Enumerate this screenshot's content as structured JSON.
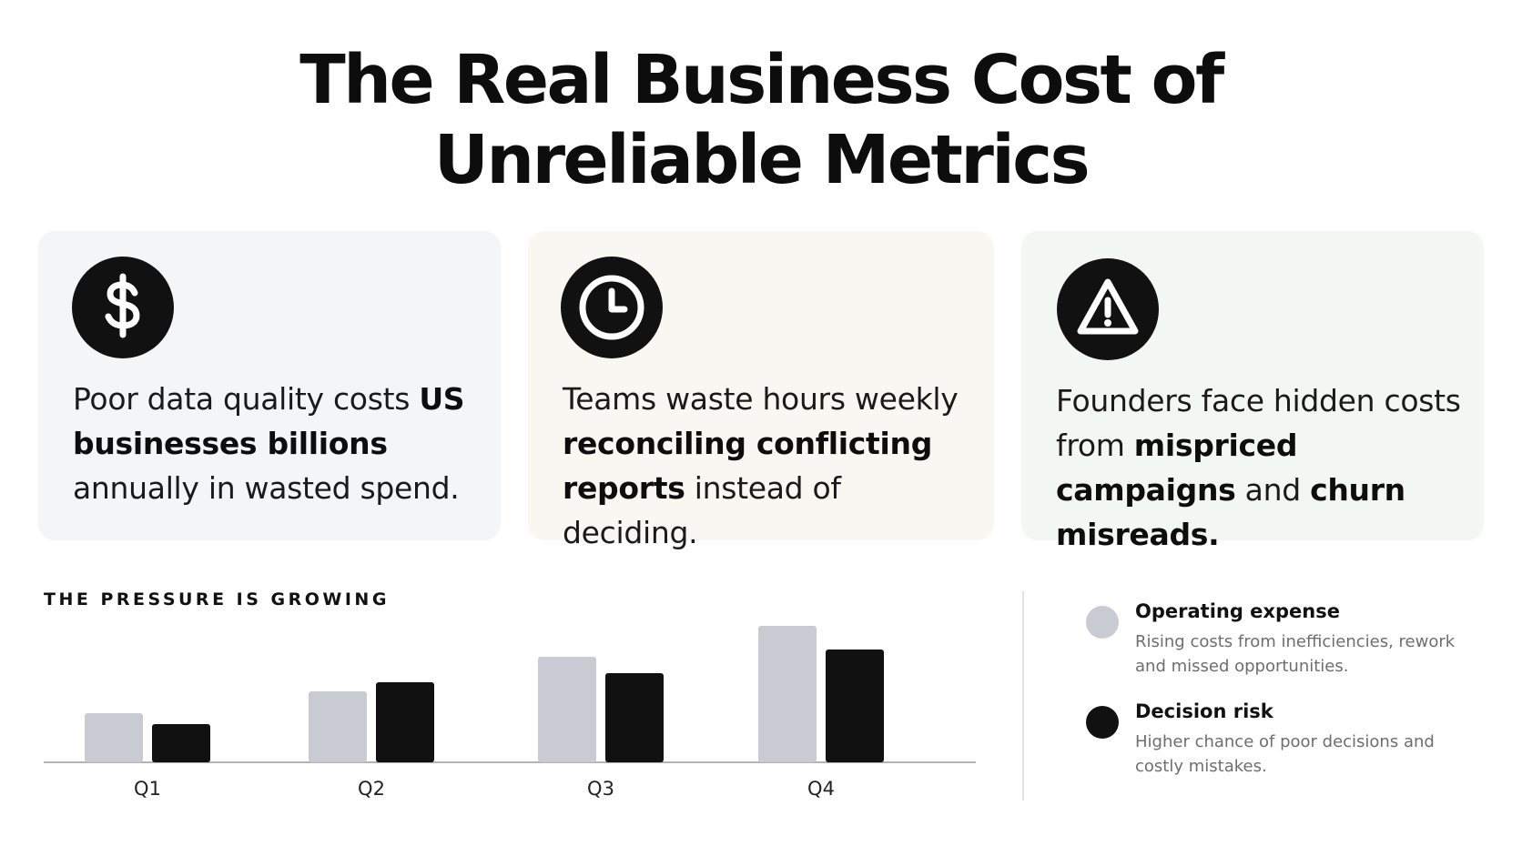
{
  "header": {
    "title_line1": "The Real Business Cost of",
    "title_line2": "Unreliable Metrics"
  },
  "cards": [
    {
      "icon": "dollar-icon",
      "text_before": "Poor data quality costs ",
      "text_bold": "US businesses billions",
      "text_after": " annually in wasted spend.",
      "background": "#f4f5f7"
    },
    {
      "icon": "clock-icon",
      "text_before": "Teams waste hours weekly ",
      "text_bold": "reconciling conflicting reports",
      "text_after": " instead of deciding.",
      "background": "#f9f7f1"
    },
    {
      "icon": "warning-icon",
      "text_before": "Founders face hidden costs from ",
      "text_bold": "mispriced campaigns",
      "text_middle": " and ",
      "text_bold2": "churn misreads.",
      "background": "#f3f7f3"
    }
  ],
  "section": {
    "label": "THE PRESSURE IS GROWING"
  },
  "legend": [
    {
      "name": "Operating expense",
      "description": "Rising costs from inefficiencies, rework and missed opportunities.",
      "color": "#c8cbd1"
    },
    {
      "name": "Decision risk",
      "description": "Higher chance of poor decisions and costly mistakes.",
      "color": "#111111"
    }
  ],
  "chart_data": {
    "type": "bar",
    "categories": [
      "Q1",
      "Q2",
      "Q3",
      "Q4"
    ],
    "series": [
      {
        "name": "Operating expense",
        "values": [
          27,
          39,
          58,
          75
        ],
        "color": "#c8cbd1"
      },
      {
        "name": "Decision risk",
        "values": [
          21,
          44,
          49,
          62
        ],
        "color": "#111111"
      }
    ],
    "ylim": [
      0,
      80
    ],
    "grid": false,
    "legend_position": "right"
  }
}
